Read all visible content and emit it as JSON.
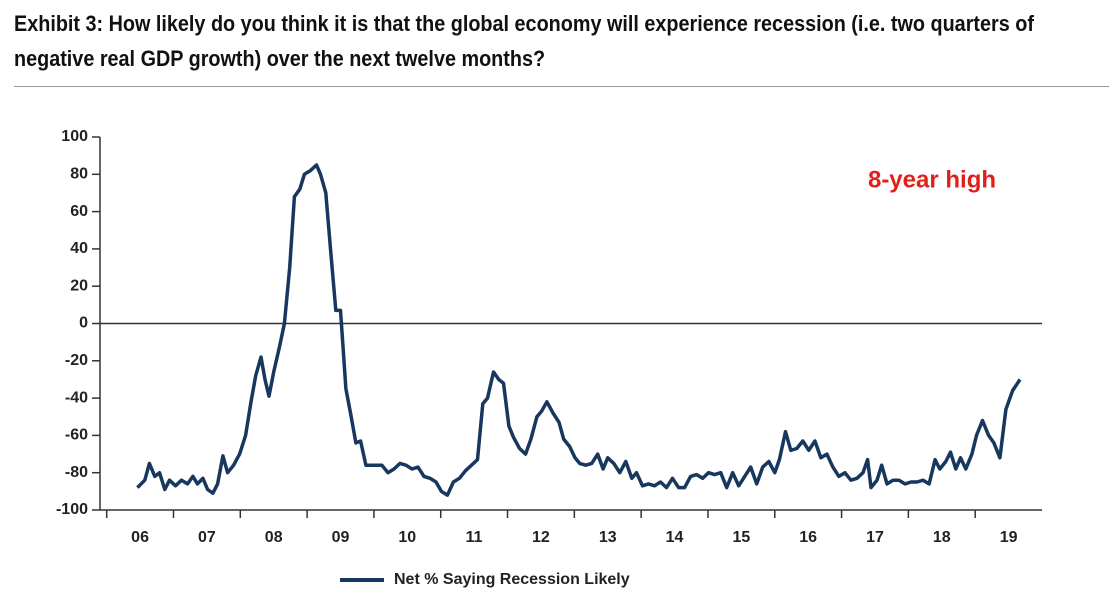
{
  "chart_data": {
    "type": "line",
    "title": "Exhibit 3: How likely do you think it is that the global economy will experience recession (i.e. two quarters of negative real GDP growth) over the next twelve months?",
    "annotation": "8-year high",
    "x": [
      2006.46,
      2006.57,
      2006.64,
      2006.72,
      2006.79,
      2006.87,
      2006.94,
      2007.03,
      2007.12,
      2007.21,
      2007.29,
      2007.36,
      2007.44,
      2007.51,
      2007.59,
      2007.66,
      2007.74,
      2007.81,
      2007.9,
      2007.99,
      2008.08,
      2008.16,
      2008.23,
      2008.31,
      2008.37,
      2008.43,
      2008.5,
      2008.59,
      2008.66,
      2008.74,
      2008.81,
      2008.89,
      2008.96,
      2009.05,
      2009.14,
      2009.2,
      2009.28,
      2009.35,
      2009.43,
      2009.5,
      2009.58,
      2009.65,
      2009.73,
      2009.8,
      2009.88,
      2009.95,
      2010.03,
      2010.12,
      2010.21,
      2010.3,
      2010.39,
      2010.48,
      2010.57,
      2010.66,
      2010.75,
      2010.84,
      2010.93,
      2011.01,
      2011.1,
      2011.19,
      2011.28,
      2011.37,
      2011.46,
      2011.55,
      2011.63,
      2011.7,
      2011.79,
      2011.87,
      2011.94,
      2012.02,
      2012.09,
      2012.18,
      2012.27,
      2012.35,
      2012.44,
      2012.51,
      2012.59,
      2012.68,
      2012.77,
      2012.84,
      2012.93,
      2013.01,
      2013.08,
      2013.17,
      2013.26,
      2013.35,
      2013.43,
      2013.5,
      2013.59,
      2013.68,
      2013.77,
      2013.86,
      2013.93,
      2014.02,
      2014.11,
      2014.2,
      2014.29,
      2014.38,
      2014.47,
      2014.56,
      2014.65,
      2014.74,
      2014.83,
      2014.92,
      2015.01,
      2015.1,
      2015.19,
      2015.28,
      2015.37,
      2015.46,
      2015.55,
      2015.64,
      2015.73,
      2015.82,
      2015.91,
      2016.0,
      2016.07,
      2016.16,
      2016.24,
      2016.33,
      2016.42,
      2016.51,
      2016.6,
      2016.69,
      2016.78,
      2016.87,
      2016.96,
      2017.05,
      2017.14,
      2017.23,
      2017.32,
      2017.39,
      2017.44,
      2017.53,
      2017.6,
      2017.68,
      2017.77,
      2017.86,
      2017.95,
      2018.04,
      2018.13,
      2018.22,
      2018.31,
      2018.4,
      2018.47,
      2018.56,
      2018.63,
      2018.71,
      2018.78,
      2018.86,
      2018.95,
      2019.02,
      2019.11,
      2019.2,
      2019.28,
      2019.37,
      2019.46,
      2019.56,
      2019.67
    ],
    "series": [
      {
        "name": "Net % Saying Recession Likely",
        "color": "#17375e",
        "values": [
          -88,
          -84,
          -75,
          -82,
          -80,
          -89,
          -84,
          -87,
          -84,
          -86,
          -82,
          -86,
          -83,
          -89,
          -91,
          -86,
          -71,
          -80,
          -76,
          -70,
          -60,
          -42,
          -28,
          -18,
          -30,
          -39,
          -26,
          -12,
          0,
          30,
          68,
          72,
          80,
          82,
          85,
          80,
          70,
          40,
          7,
          7,
          -35,
          -48,
          -64,
          -63,
          -76,
          -76,
          -76,
          -76,
          -80,
          -78,
          -75,
          -76,
          -78,
          -77,
          -82,
          -83,
          -85,
          -90,
          -92,
          -85,
          -83,
          -79,
          -76,
          -73,
          -43,
          -40,
          -26,
          -30,
          -32,
          -55,
          -61,
          -67,
          -70,
          -62,
          -50,
          -47,
          -42,
          -48,
          -53,
          -62,
          -66,
          -72,
          -75,
          -76,
          -75,
          -70,
          -78,
          -72,
          -75,
          -80,
          -74,
          -83,
          -80,
          -87,
          -86,
          -87,
          -85,
          -88,
          -83,
          -88,
          -88,
          -82,
          -81,
          -83,
          -80,
          -81,
          -80,
          -88,
          -80,
          -87,
          -82,
          -77,
          -86,
          -77,
          -74,
          -80,
          -73,
          -58,
          -68,
          -67,
          -63,
          -68,
          -63,
          -72,
          -70,
          -77,
          -82,
          -80,
          -84,
          -83,
          -80,
          -73,
          -88,
          -84,
          -76,
          -86,
          -84,
          -84,
          -86,
          -85,
          -85,
          -84,
          -86,
          -73,
          -78,
          -74,
          -69,
          -78,
          -72,
          -78,
          -70,
          -60,
          -52,
          -60,
          -64,
          -72,
          -46,
          -36,
          -30
        ]
      }
    ],
    "xlim": [
      2005.9,
      2020
    ],
    "xticks": [
      {
        "value": 2006.5,
        "label": "06"
      },
      {
        "value": 2007.5,
        "label": "07"
      },
      {
        "value": 2008.5,
        "label": "08"
      },
      {
        "value": 2009.5,
        "label": "09"
      },
      {
        "value": 2010.5,
        "label": "10"
      },
      {
        "value": 2011.5,
        "label": "11"
      },
      {
        "value": 2012.5,
        "label": "12"
      },
      {
        "value": 2013.5,
        "label": "13"
      },
      {
        "value": 2014.5,
        "label": "14"
      },
      {
        "value": 2015.5,
        "label": "15"
      },
      {
        "value": 2016.5,
        "label": "16"
      },
      {
        "value": 2017.5,
        "label": "17"
      },
      {
        "value": 2018.5,
        "label": "18"
      },
      {
        "value": 2019.5,
        "label": "19"
      }
    ],
    "ylim": [
      -100,
      100
    ],
    "yticks": [
      -100,
      -80,
      -60,
      -40,
      -20,
      0,
      20,
      40,
      60,
      80,
      100
    ],
    "legend": "bottom"
  }
}
